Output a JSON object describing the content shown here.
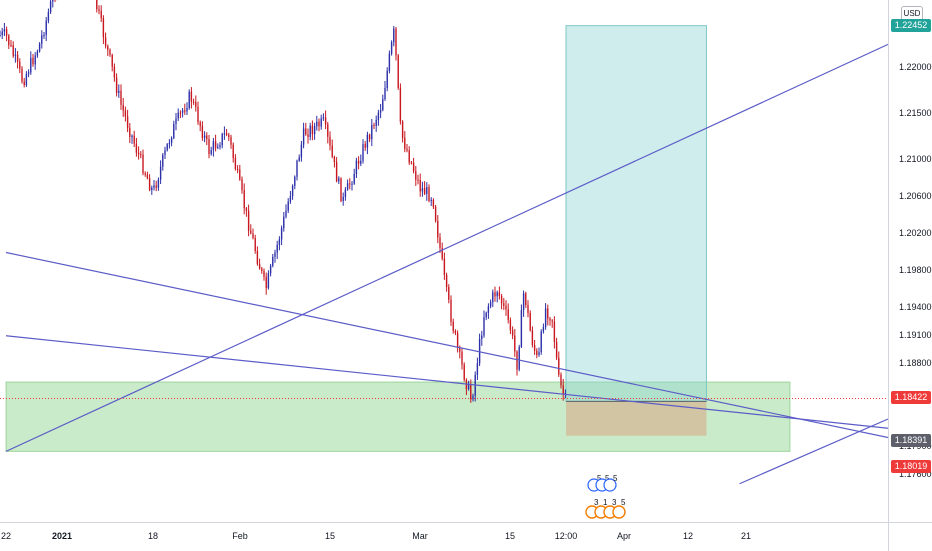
{
  "currency": "USD",
  "colors": {
    "up": "#2b2fa8",
    "down": "#c8171f",
    "trendline": "#5c5cc8",
    "zone": "#7fd07f",
    "target": "#8fd3d3",
    "stop": "#d9a585",
    "current_price": "#ef3a3a",
    "last_value": "#5d606b",
    "target_badge": "#22a39a",
    "stop_badge": "#ef3a3a"
  },
  "price_axis": {
    "ticks": [
      "1.22000",
      "1.21500",
      "1.21000",
      "1.20600",
      "1.20200",
      "1.19800",
      "1.19400",
      "1.19100",
      "1.18800",
      "1.17900",
      "1.17600"
    ],
    "badges": {
      "target": "1.22452",
      "current": "1.18422",
      "last": "1.18391",
      "stop": "1.18019"
    }
  },
  "time_axis": {
    "labels": [
      {
        "text": "22",
        "bold": false
      },
      {
        "text": "2021",
        "bold": true
      },
      {
        "text": "18",
        "bold": false
      },
      {
        "text": "Feb",
        "bold": false
      },
      {
        "text": "15",
        "bold": false
      },
      {
        "text": "Mar",
        "bold": false
      },
      {
        "text": "15",
        "bold": false
      },
      {
        "text": "12:00",
        "bold": false
      },
      {
        "text": "Apr",
        "bold": false
      },
      {
        "text": "12",
        "bold": false
      },
      {
        "text": "21",
        "bold": false
      }
    ]
  },
  "event_markers": {
    "top": [
      "5",
      "5",
      "5"
    ],
    "bottom": [
      "3",
      "1",
      "3",
      "5"
    ]
  },
  "chart_data": {
    "type": "candlestick",
    "instrument_quote": "USD",
    "close_path": [
      [
        "2020-12-22",
        1.2235
      ],
      [
        "2020-12-25",
        1.2185
      ],
      [
        "2020-12-28",
        1.2225
      ],
      [
        "2020-12-31",
        1.229
      ],
      [
        "2021-01-03",
        1.232
      ],
      [
        "2021-01-06",
        1.23
      ],
      [
        "2021-01-09",
        1.223
      ],
      [
        "2021-01-12",
        1.216
      ],
      [
        "2021-01-15",
        1.211
      ],
      [
        "2021-01-18",
        1.2065
      ],
      [
        "2021-01-21",
        1.213
      ],
      [
        "2021-01-24",
        1.217
      ],
      [
        "2021-01-27",
        1.211
      ],
      [
        "2021-01-30",
        1.213
      ],
      [
        "2021-02-02",
        1.204
      ],
      [
        "2021-02-05",
        1.196
      ],
      [
        "2021-02-08",
        1.204
      ],
      [
        "2021-02-11",
        1.213
      ],
      [
        "2021-02-14",
        1.214
      ],
      [
        "2021-02-17",
        1.2055
      ],
      [
        "2021-02-20",
        1.211
      ],
      [
        "2021-02-23",
        1.216
      ],
      [
        "2021-02-25",
        1.224
      ],
      [
        "2021-02-26",
        1.213
      ],
      [
        "2021-03-01",
        1.207
      ],
      [
        "2021-03-03",
        1.206
      ],
      [
        "2021-03-05",
        1.196
      ],
      [
        "2021-03-07",
        1.189
      ],
      [
        "2021-03-09",
        1.184
      ],
      [
        "2021-03-11",
        1.1935
      ],
      [
        "2021-03-13",
        1.196
      ],
      [
        "2021-03-15",
        1.192
      ],
      [
        "2021-03-17",
        1.188
      ],
      [
        "2021-03-19",
        1.196
      ],
      [
        "2021-03-21",
        1.191
      ],
      [
        "2021-03-23",
        1.188
      ],
      [
        "2021-03-25",
        1.194
      ],
      [
        "2021-03-27",
        1.193
      ],
      [
        "2021-03-29",
        1.186
      ],
      [
        "2021-03-31",
        1.1839
      ]
    ],
    "last_price": 1.18391,
    "current_price": 1.18422,
    "position": {
      "type": "long",
      "entry": 1.18391,
      "target": 1.22452,
      "stop": 1.18019,
      "start": "2021-03-31",
      "end": "2021-04-13"
    },
    "demand_zone": {
      "top": 1.186,
      "bottom": 1.1785,
      "start": "2020-12-22",
      "end": "2021-04-27"
    },
    "trendlines": [
      {
        "from": [
          "2020-12-22",
          1.2
        ],
        "to": [
          "2021-04-27",
          1.18
        ]
      },
      {
        "from": [
          "2020-12-22",
          1.191
        ],
        "to": [
          "2021-04-27",
          1.181
        ]
      },
      {
        "from": [
          "2020-12-22",
          1.1785
        ],
        "to": [
          "2021-04-27",
          1.2225
        ]
      },
      {
        "from": [
          "2021-04-20",
          1.175
        ],
        "to": [
          "2021-04-27",
          1.182
        ]
      }
    ],
    "y_range": [
      1.174,
      1.232
    ],
    "x_range": [
      "2020-12-22",
      "2021-04-27"
    ]
  }
}
